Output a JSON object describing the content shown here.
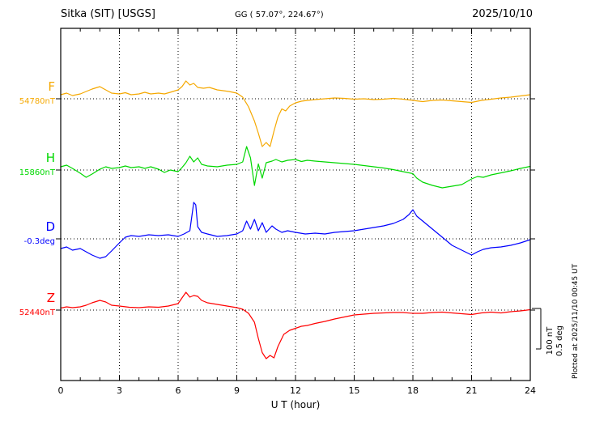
{
  "header": {
    "title": "Sitka (SIT)  [USGS]",
    "coords": "GG ( 57.07°, 224.67°)",
    "date": "2025/10/10"
  },
  "xaxis": {
    "label": "U T (hour)"
  },
  "scale_bar": {
    "line1": "100 nT",
    "line2": "0.5 deg"
  },
  "plotted_note": "Plotted at 2025/11/10 00:45 UT",
  "chart_data": {
    "type": "line",
    "title": "Sitka (SIT) [USGS] magnetogram 2025/10/10",
    "xlabel": "U T (hour)",
    "x_range": [
      0,
      24
    ],
    "x_ticks": [
      0,
      3,
      6,
      9,
      12,
      15,
      18,
      21,
      24
    ],
    "grid": "dotted vertical lines every 3 h; dotted horizontal baseline per channel",
    "legend_position": "left channel labels",
    "scale": {
      "nT_per_div": 100,
      "deg_per_div": 0.5
    },
    "series": [
      {
        "id": "F",
        "label": "F",
        "baseline_label": "54780nT",
        "baseline_value": 54780,
        "unit": "nT",
        "color": "#f5a800",
        "points": [
          [
            0,
            10
          ],
          [
            0.3,
            14
          ],
          [
            0.6,
            8
          ],
          [
            1,
            12
          ],
          [
            1.3,
            18
          ],
          [
            1.6,
            24
          ],
          [
            2,
            30
          ],
          [
            2.3,
            22
          ],
          [
            2.6,
            14
          ],
          [
            3,
            12
          ],
          [
            3.3,
            15
          ],
          [
            3.6,
            10
          ],
          [
            4,
            12
          ],
          [
            4.3,
            16
          ],
          [
            4.6,
            12
          ],
          [
            5,
            14
          ],
          [
            5.3,
            12
          ],
          [
            5.6,
            16
          ],
          [
            6,
            22
          ],
          [
            6.2,
            30
          ],
          [
            6.4,
            44
          ],
          [
            6.6,
            34
          ],
          [
            6.8,
            38
          ],
          [
            7,
            28
          ],
          [
            7.3,
            26
          ],
          [
            7.6,
            28
          ],
          [
            8,
            22
          ],
          [
            8.3,
            20
          ],
          [
            8.6,
            18
          ],
          [
            9,
            14
          ],
          [
            9.3,
            4
          ],
          [
            9.6,
            -20
          ],
          [
            9.9,
            -55
          ],
          [
            10.1,
            -85
          ],
          [
            10.3,
            -118
          ],
          [
            10.5,
            -108
          ],
          [
            10.7,
            -118
          ],
          [
            10.9,
            -80
          ],
          [
            11.1,
            -45
          ],
          [
            11.3,
            -25
          ],
          [
            11.5,
            -30
          ],
          [
            11.7,
            -18
          ],
          [
            12,
            -10
          ],
          [
            12.3,
            -6
          ],
          [
            12.6,
            -4
          ],
          [
            13,
            -2
          ],
          [
            13.5,
            0
          ],
          [
            14,
            2
          ],
          [
            14.5,
            1
          ],
          [
            15,
            -1
          ],
          [
            15.5,
            0
          ],
          [
            16,
            -2
          ],
          [
            16.5,
            -1
          ],
          [
            17,
            1
          ],
          [
            17.5,
            -1
          ],
          [
            18,
            -4
          ],
          [
            18.5,
            -7
          ],
          [
            19,
            -4
          ],
          [
            19.5,
            -3
          ],
          [
            20,
            -5
          ],
          [
            20.5,
            -7
          ],
          [
            21,
            -9
          ],
          [
            21.5,
            -4
          ],
          [
            22,
            -1
          ],
          [
            22.5,
            2
          ],
          [
            23,
            4
          ],
          [
            23.5,
            7
          ],
          [
            24,
            10
          ]
        ]
      },
      {
        "id": "H",
        "label": "H",
        "baseline_label": "15860nT",
        "baseline_value": 15860,
        "unit": "nT",
        "color": "#00d800",
        "points": [
          [
            0,
            8
          ],
          [
            0.3,
            12
          ],
          [
            0.6,
            4
          ],
          [
            1,
            -8
          ],
          [
            1.3,
            -18
          ],
          [
            1.6,
            -10
          ],
          [
            2,
            2
          ],
          [
            2.3,
            8
          ],
          [
            2.6,
            4
          ],
          [
            3,
            6
          ],
          [
            3.3,
            10
          ],
          [
            3.6,
            6
          ],
          [
            4,
            8
          ],
          [
            4.3,
            4
          ],
          [
            4.6,
            8
          ],
          [
            5,
            2
          ],
          [
            5.3,
            -6
          ],
          [
            5.6,
            0
          ],
          [
            6,
            -4
          ],
          [
            6.2,
            6
          ],
          [
            6.4,
            18
          ],
          [
            6.6,
            34
          ],
          [
            6.8,
            20
          ],
          [
            7,
            30
          ],
          [
            7.2,
            14
          ],
          [
            7.5,
            10
          ],
          [
            8,
            8
          ],
          [
            8.5,
            12
          ],
          [
            9,
            14
          ],
          [
            9.3,
            20
          ],
          [
            9.5,
            58
          ],
          [
            9.7,
            30
          ],
          [
            9.9,
            -38
          ],
          [
            10.1,
            15
          ],
          [
            10.3,
            -20
          ],
          [
            10.5,
            18
          ],
          [
            10.8,
            22
          ],
          [
            11,
            26
          ],
          [
            11.3,
            20
          ],
          [
            11.6,
            24
          ],
          [
            12,
            26
          ],
          [
            12.3,
            21
          ],
          [
            12.6,
            24
          ],
          [
            13,
            22
          ],
          [
            13.5,
            20
          ],
          [
            14,
            18
          ],
          [
            14.5,
            16
          ],
          [
            15,
            14
          ],
          [
            15.5,
            11
          ],
          [
            16,
            8
          ],
          [
            16.5,
            5
          ],
          [
            17,
            1
          ],
          [
            17.5,
            -4
          ],
          [
            18,
            -9
          ],
          [
            18.2,
            -20
          ],
          [
            18.5,
            -30
          ],
          [
            19,
            -38
          ],
          [
            19.5,
            -44
          ],
          [
            20,
            -40
          ],
          [
            20.5,
            -36
          ],
          [
            21,
            -22
          ],
          [
            21.3,
            -16
          ],
          [
            21.6,
            -18
          ],
          [
            22,
            -12
          ],
          [
            22.5,
            -7
          ],
          [
            23,
            -2
          ],
          [
            23.5,
            4
          ],
          [
            24,
            9
          ]
        ]
      },
      {
        "id": "D",
        "label": "D",
        "baseline_label": "-0.3deg",
        "baseline_value": -0.3,
        "unit": "deg",
        "color": "#0000ff",
        "points": [
          [
            0,
            -0.12
          ],
          [
            0.3,
            -0.1
          ],
          [
            0.6,
            -0.14
          ],
          [
            1,
            -0.12
          ],
          [
            1.3,
            -0.16
          ],
          [
            1.6,
            -0.2
          ],
          [
            2,
            -0.24
          ],
          [
            2.3,
            -0.22
          ],
          [
            2.6,
            -0.15
          ],
          [
            3,
            -0.05
          ],
          [
            3.3,
            0.02
          ],
          [
            3.6,
            0.04
          ],
          [
            4,
            0.03
          ],
          [
            4.5,
            0.05
          ],
          [
            5,
            0.04
          ],
          [
            5.5,
            0.05
          ],
          [
            6,
            0.03
          ],
          [
            6.3,
            0.06
          ],
          [
            6.6,
            0.1
          ],
          [
            6.8,
            0.45
          ],
          [
            6.9,
            0.42
          ],
          [
            7,
            0.15
          ],
          [
            7.2,
            0.08
          ],
          [
            7.5,
            0.06
          ],
          [
            8,
            0.03
          ],
          [
            8.5,
            0.04
          ],
          [
            9,
            0.06
          ],
          [
            9.3,
            0.1
          ],
          [
            9.5,
            0.22
          ],
          [
            9.7,
            0.12
          ],
          [
            9.9,
            0.24
          ],
          [
            10.1,
            0.1
          ],
          [
            10.3,
            0.2
          ],
          [
            10.5,
            0.08
          ],
          [
            10.8,
            0.16
          ],
          [
            11,
            0.12
          ],
          [
            11.3,
            0.08
          ],
          [
            11.6,
            0.1
          ],
          [
            12,
            0.08
          ],
          [
            12.5,
            0.06
          ],
          [
            13,
            0.07
          ],
          [
            13.5,
            0.06
          ],
          [
            14,
            0.08
          ],
          [
            14.5,
            0.09
          ],
          [
            15,
            0.1
          ],
          [
            15.5,
            0.12
          ],
          [
            16,
            0.14
          ],
          [
            16.5,
            0.16
          ],
          [
            17,
            0.19
          ],
          [
            17.5,
            0.24
          ],
          [
            17.8,
            0.3
          ],
          [
            18,
            0.36
          ],
          [
            18.2,
            0.28
          ],
          [
            18.5,
            0.22
          ],
          [
            19,
            0.12
          ],
          [
            19.5,
            0.02
          ],
          [
            20,
            -0.08
          ],
          [
            20.5,
            -0.14
          ],
          [
            21,
            -0.2
          ],
          [
            21.3,
            -0.16
          ],
          [
            21.6,
            -0.13
          ],
          [
            22,
            -0.11
          ],
          [
            22.5,
            -0.1
          ],
          [
            23,
            -0.08
          ],
          [
            23.5,
            -0.05
          ],
          [
            24,
            -0.01
          ]
        ]
      },
      {
        "id": "Z",
        "label": "Z",
        "baseline_label": "52440nT",
        "baseline_value": 52440,
        "unit": "nT",
        "color": "#ff0000",
        "points": [
          [
            0,
            5
          ],
          [
            0.3,
            8
          ],
          [
            0.6,
            6
          ],
          [
            1,
            8
          ],
          [
            1.3,
            12
          ],
          [
            1.6,
            18
          ],
          [
            2,
            24
          ],
          [
            2.3,
            20
          ],
          [
            2.6,
            12
          ],
          [
            3,
            10
          ],
          [
            3.5,
            7
          ],
          [
            4,
            6
          ],
          [
            4.5,
            8
          ],
          [
            5,
            7
          ],
          [
            5.5,
            10
          ],
          [
            6,
            16
          ],
          [
            6.2,
            30
          ],
          [
            6.4,
            44
          ],
          [
            6.6,
            32
          ],
          [
            6.8,
            36
          ],
          [
            7,
            34
          ],
          [
            7.2,
            24
          ],
          [
            7.5,
            18
          ],
          [
            8,
            14
          ],
          [
            8.5,
            10
          ],
          [
            9,
            6
          ],
          [
            9.3,
            2
          ],
          [
            9.6,
            -8
          ],
          [
            9.9,
            -30
          ],
          [
            10.1,
            -70
          ],
          [
            10.3,
            -105
          ],
          [
            10.5,
            -120
          ],
          [
            10.7,
            -112
          ],
          [
            10.9,
            -118
          ],
          [
            11.1,
            -90
          ],
          [
            11.4,
            -60
          ],
          [
            11.7,
            -50
          ],
          [
            12,
            -45
          ],
          [
            12.3,
            -40
          ],
          [
            12.6,
            -38
          ],
          [
            13,
            -33
          ],
          [
            13.5,
            -28
          ],
          [
            14,
            -22
          ],
          [
            14.5,
            -17
          ],
          [
            15,
            -12
          ],
          [
            15.5,
            -10
          ],
          [
            16,
            -8
          ],
          [
            16.5,
            -7
          ],
          [
            17,
            -6
          ],
          [
            17.5,
            -6
          ],
          [
            18,
            -8
          ],
          [
            18.5,
            -8
          ],
          [
            19,
            -6
          ],
          [
            19.5,
            -5
          ],
          [
            20,
            -7
          ],
          [
            20.5,
            -9
          ],
          [
            21,
            -11
          ],
          [
            21.5,
            -7
          ],
          [
            22,
            -5
          ],
          [
            22.5,
            -7
          ],
          [
            23,
            -4
          ],
          [
            23.5,
            -2
          ],
          [
            24,
            1
          ]
        ]
      }
    ]
  }
}
